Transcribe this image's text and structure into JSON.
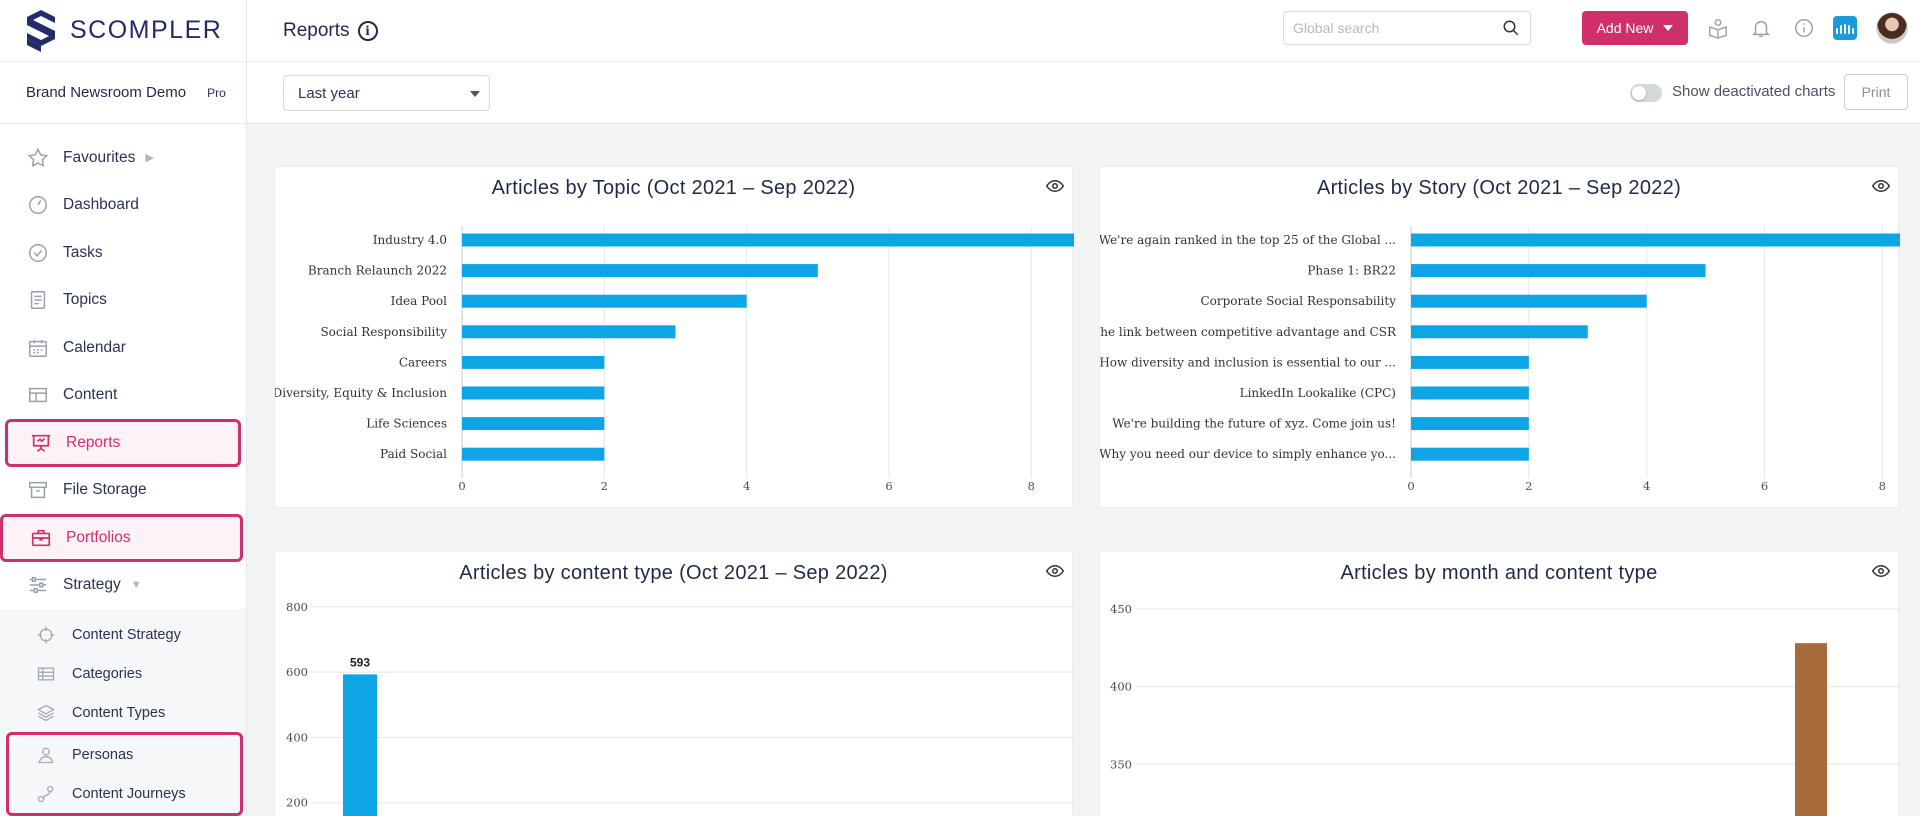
{
  "brand": {
    "name": "SCOMPLER"
  },
  "workspace": {
    "name": "Brand Newsroom Demo",
    "plan": "Pro"
  },
  "nav": {
    "favourites": "Favourites",
    "dashboard": "Dashboard",
    "tasks": "Tasks",
    "topics": "Topics",
    "calendar": "Calendar",
    "content": "Content",
    "reports": "Reports",
    "file_storage": "File Storage",
    "portfolios": "Portfolios",
    "strategy": "Strategy"
  },
  "subnav": {
    "content_strategy": "Content Strategy",
    "categories": "Categories",
    "content_types": "Content Types",
    "personas": "Personas",
    "content_journeys": "Content Journeys"
  },
  "header": {
    "title": "Reports",
    "search_placeholder": "Global search",
    "add_new": "Add New"
  },
  "filters": {
    "date_range": "Last year",
    "toggle_label": "Show deactivated charts",
    "print": "Print"
  },
  "colors": {
    "accent": "#cf2f6a",
    "bar_blue": "#0ea5e5",
    "bar_brown": "#a8693b"
  },
  "chart_data": [
    {
      "type": "bar",
      "orientation": "horizontal",
      "title": "Articles by Topic (Oct 2021 – Sep 2022)",
      "categories": [
        "Industry 4.0",
        "Branch Relaunch 2022",
        "Idea Pool",
        "Social Responsibility",
        "Careers",
        "Diversity, Equity & Inclusion",
        "Life Sciences",
        "Paid Social"
      ],
      "values": [
        9,
        5,
        4,
        3,
        2,
        2,
        2,
        2
      ],
      "xlim": [
        0,
        8.6
      ],
      "xticks": [
        0,
        2,
        4,
        6,
        8
      ]
    },
    {
      "type": "bar",
      "orientation": "horizontal",
      "title": "Articles by Story (Oct 2021 – Sep 2022)",
      "categories": [
        "We're again ranked in the top 25 of the Global ...",
        "Phase 1: BR22",
        "Corporate Social Responsability",
        "The link between competitive advantage and CSR",
        "How diversity and inclusion is essential to our ...",
        "LinkedIn Lookalike (CPC)",
        "We're building the future of xyz. Come join us!",
        "Why you need our device to simply enhance yo..."
      ],
      "values": [
        9,
        5,
        4,
        3,
        2,
        2,
        2,
        2
      ],
      "xlim": [
        0,
        8.3
      ],
      "xticks": [
        0,
        2,
        4,
        6,
        8
      ]
    },
    {
      "type": "bar",
      "title": "Articles by content type (Oct 2021 – Sep 2022)",
      "categories": [
        ""
      ],
      "values": [
        593
      ],
      "data_labels": [
        "593"
      ],
      "yticks": [
        200,
        400,
        600,
        800
      ]
    },
    {
      "type": "bar",
      "title": "Articles by month and content type",
      "values": [
        428
      ],
      "yticks": [
        350,
        400,
        450
      ]
    }
  ]
}
